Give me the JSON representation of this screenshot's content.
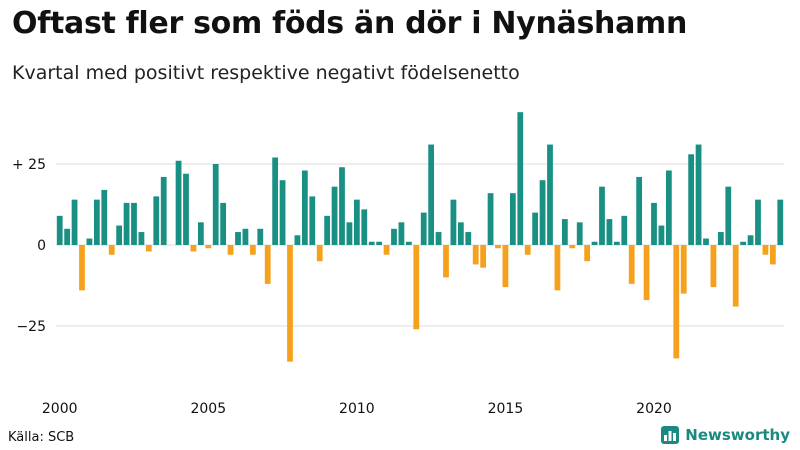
{
  "title": "Oftast fler som föds än dör i Nynäshamn",
  "subtitle": "Kvartal med positivt respektive negativt födelsenetto",
  "source": "Källa: SCB",
  "brand": {
    "name": "Newsworthy",
    "icon": "bar-chart-logo-icon"
  },
  "colors": {
    "positive": "#1a9084",
    "negative": "#f5a11d",
    "grid": "#dddddd"
  },
  "chart_data": {
    "type": "bar",
    "x_start": "2000 Q1",
    "x_ticks": [
      "2000",
      "2005",
      "2010",
      "2015",
      "2020"
    ],
    "y_ticks": [
      {
        "value": 25,
        "label": "+ 25"
      },
      {
        "value": 0,
        "label": "0"
      },
      {
        "value": -25,
        "label": "−25"
      }
    ],
    "ylim": [
      -43,
      43
    ],
    "values": [
      9,
      5,
      14,
      -14,
      2,
      14,
      17,
      -3,
      6,
      13,
      13,
      4,
      -2,
      15,
      21,
      0,
      26,
      22,
      -2,
      7,
      -1,
      25,
      13,
      -3,
      4,
      5,
      -3,
      5,
      -12,
      27,
      20,
      -36,
      3,
      23,
      15,
      -5,
      9,
      18,
      24,
      7,
      14,
      11,
      1,
      1,
      -3,
      5,
      7,
      1,
      -26,
      10,
      31,
      4,
      -10,
      14,
      7,
      4,
      -6,
      -7,
      16,
      -1,
      -13,
      16,
      41,
      -3,
      10,
      20,
      31,
      -14,
      8,
      -1,
      7,
      -5,
      1,
      18,
      8,
      1,
      9,
      -12,
      21,
      -17,
      13,
      6,
      23,
      -35,
      -15,
      28,
      31,
      2,
      -13,
      4,
      18,
      -19,
      1,
      3,
      14,
      -3,
      -6,
      14
    ]
  }
}
